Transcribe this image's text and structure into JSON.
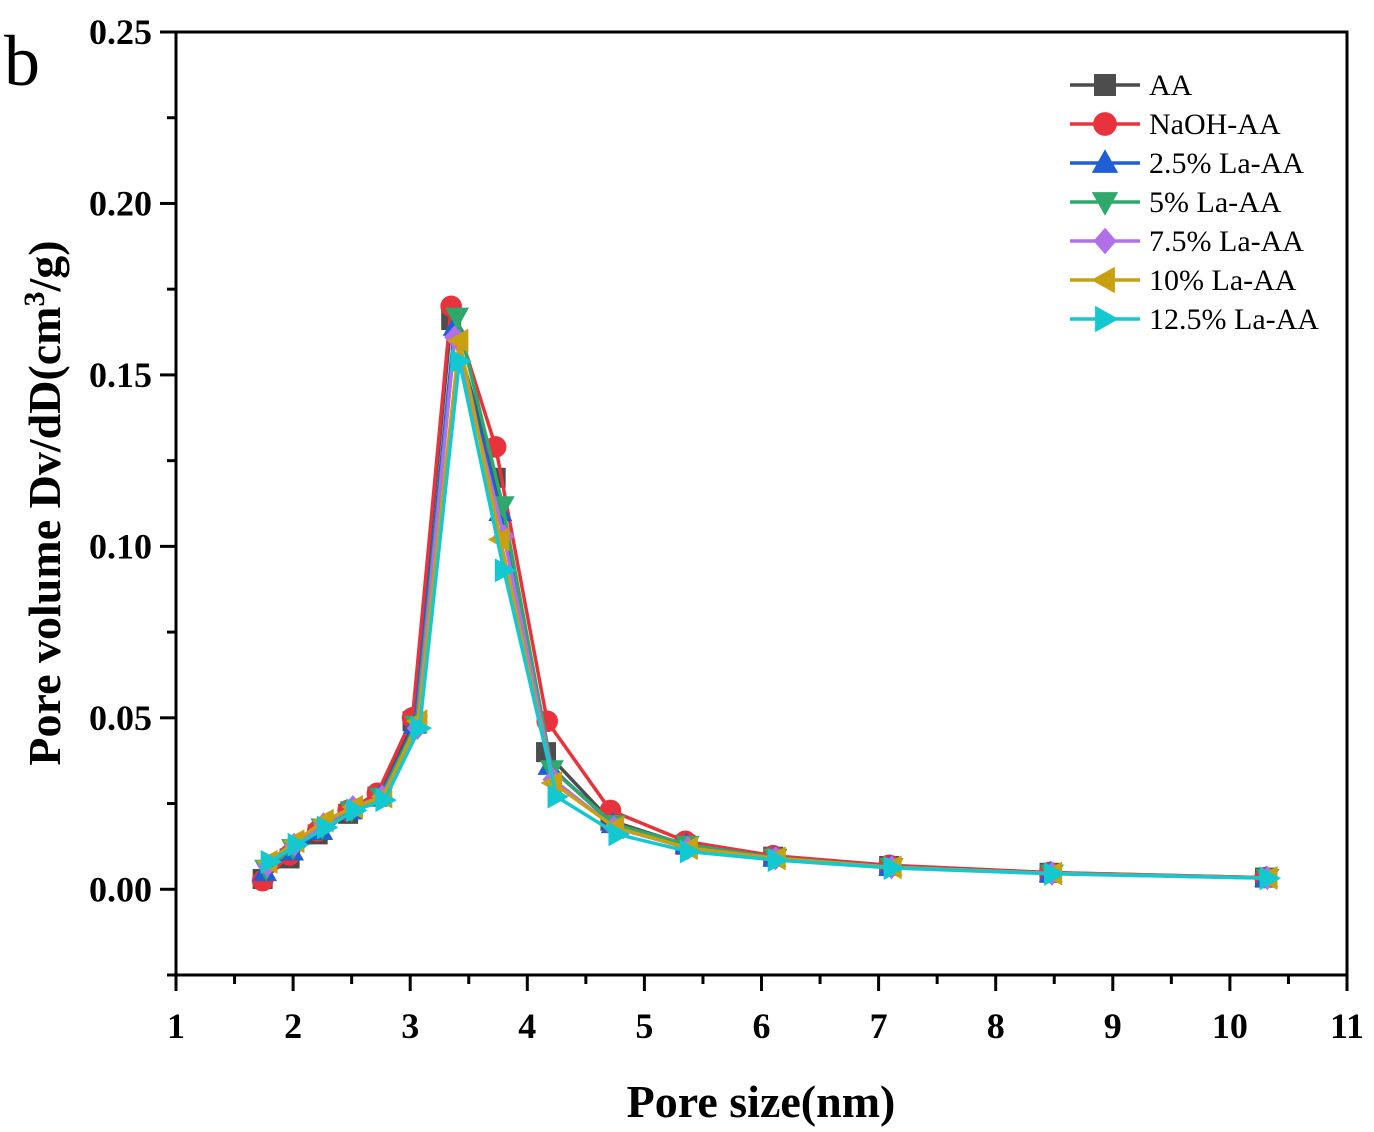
{
  "panel_label": "b",
  "chart_data": {
    "type": "line",
    "xlabel": "Pore size(nm)",
    "ylabel_main": "Pore volume Dv/dD(cm",
    "ylabel_sup": "3",
    "ylabel_tail": "/g)",
    "xlim": [
      1,
      11
    ],
    "ylim": [
      -0.025,
      0.25
    ],
    "xticks": [
      1,
      2,
      3,
      4,
      5,
      6,
      7,
      8,
      9,
      10,
      11
    ],
    "xtick_labels": [
      "1",
      "2",
      "3",
      "4",
      "5",
      "6",
      "7",
      "8",
      "9",
      "10",
      "11"
    ],
    "yticks": [
      0.0,
      0.05,
      0.1,
      0.15,
      0.2,
      0.25
    ],
    "ytick_labels": [
      "0.00",
      "0.05",
      "0.10",
      "0.15",
      "0.20",
      "0.25"
    ],
    "legend_position": "top-right",
    "grid": false,
    "series": [
      {
        "name": "AA",
        "color": "#4d4d4d",
        "marker": "square",
        "x": [
          1.74,
          1.97,
          2.21,
          2.47,
          2.72,
          3.02,
          3.35,
          3.73,
          4.16,
          4.71,
          5.35,
          6.1,
          7.09,
          8.46,
          10.3
        ],
        "y": [
          0.003,
          0.009,
          0.016,
          0.022,
          0.027,
          0.049,
          0.166,
          0.12,
          0.04,
          0.02,
          0.013,
          0.0095,
          0.0068,
          0.0048,
          0.0034
        ]
      },
      {
        "name": "NaOH-AA",
        "color": "#e8323c",
        "marker": "circle",
        "x": [
          1.74,
          1.97,
          2.21,
          2.47,
          2.72,
          3.02,
          3.35,
          3.73,
          4.17,
          4.71,
          5.35,
          6.1,
          7.09,
          8.46,
          10.3
        ],
        "y": [
          0.0025,
          0.01,
          0.017,
          0.023,
          0.028,
          0.05,
          0.17,
          0.129,
          0.049,
          0.023,
          0.014,
          0.0098,
          0.007,
          0.0049,
          0.0034
        ]
      },
      {
        "name": "2.5% La-AA",
        "color": "#1f5fd6",
        "marker": "triangle-up",
        "x": [
          1.76,
          1.99,
          2.24,
          2.49,
          2.74,
          3.04,
          3.38,
          3.77,
          4.19,
          4.73,
          5.36,
          6.11,
          7.1,
          8.47,
          10.31
        ],
        "y": [
          0.005,
          0.011,
          0.017,
          0.023,
          0.027,
          0.048,
          0.164,
          0.11,
          0.036,
          0.019,
          0.013,
          0.0092,
          0.0066,
          0.0047,
          0.0033
        ]
      },
      {
        "name": "5% La-AA",
        "color": "#2ea86b",
        "marker": "triangle-down",
        "x": [
          1.77,
          2.0,
          2.25,
          2.5,
          2.75,
          3.05,
          3.4,
          3.79,
          4.21,
          4.74,
          5.37,
          6.12,
          7.11,
          8.48,
          10.32
        ],
        "y": [
          0.006,
          0.012,
          0.018,
          0.023,
          0.027,
          0.048,
          0.167,
          0.112,
          0.035,
          0.019,
          0.013,
          0.0092,
          0.0065,
          0.0046,
          0.0033
        ]
      },
      {
        "name": "7.5% La-AA",
        "color": "#b070e8",
        "marker": "diamond",
        "x": [
          1.78,
          2.01,
          2.26,
          2.51,
          2.76,
          3.06,
          3.38,
          3.8,
          4.22,
          4.74,
          5.37,
          6.12,
          7.11,
          8.48,
          10.32
        ],
        "y": [
          0.007,
          0.013,
          0.019,
          0.024,
          0.027,
          0.047,
          0.161,
          0.103,
          0.032,
          0.018,
          0.012,
          0.009,
          0.0064,
          0.0046,
          0.0033
        ]
      },
      {
        "name": "10% La-AA",
        "color": "#c9a010",
        "marker": "triangle-left",
        "x": [
          1.79,
          2.02,
          2.27,
          2.52,
          2.77,
          3.07,
          3.42,
          3.77,
          4.22,
          4.75,
          5.38,
          6.13,
          7.12,
          8.49,
          10.33
        ],
        "y": [
          0.008,
          0.014,
          0.02,
          0.024,
          0.027,
          0.049,
          0.16,
          0.102,
          0.031,
          0.018,
          0.012,
          0.009,
          0.0064,
          0.0046,
          0.0033
        ]
      },
      {
        "name": "12.5% La-AA",
        "color": "#14c8d2",
        "marker": "triangle-right",
        "x": [
          1.8,
          2.03,
          2.28,
          2.53,
          2.78,
          3.08,
          3.42,
          3.8,
          4.25,
          4.77,
          5.38,
          6.13,
          7.12,
          8.49,
          10.33
        ],
        "y": [
          0.008,
          0.013,
          0.018,
          0.023,
          0.026,
          0.047,
          0.154,
          0.093,
          0.027,
          0.016,
          0.011,
          0.0085,
          0.0062,
          0.0045,
          0.0032
        ]
      }
    ]
  }
}
